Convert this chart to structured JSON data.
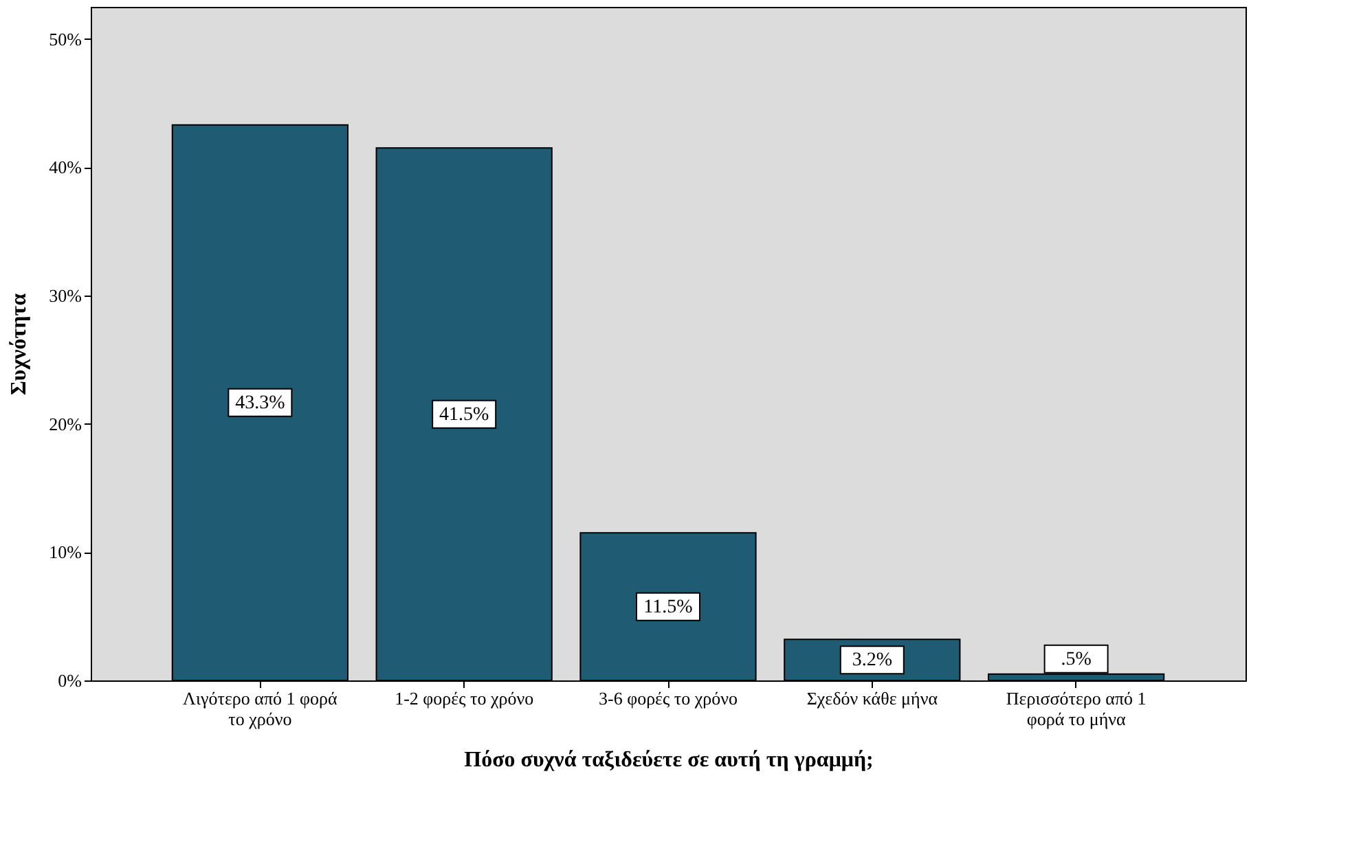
{
  "chart_data": {
    "type": "bar",
    "xlabel": "Πόσο συχνά ταξιδεύετε σε αυτή τη γραμμή;",
    "ylabel": "Συχνότητα",
    "categories": [
      "Λιγότερο από 1 φορά το χρόνο",
      "1-2 φορές το χρόνο",
      "3-6 φορές το χρόνο",
      "Σχεδόν κάθε μήνα",
      "Περισσότερο από 1 φορά το μήνα"
    ],
    "values": [
      43.3,
      41.5,
      11.5,
      3.2,
      0.5
    ],
    "value_labels": [
      "43.3%",
      "41.5%",
      "11.5%",
      "3.2%",
      ".5%"
    ],
    "color": "#1f5b73",
    "ylim": [
      0,
      52.5
    ],
    "yticks": [
      {
        "value": 0,
        "label": "0%"
      },
      {
        "value": 10,
        "label": "10%"
      },
      {
        "value": 20,
        "label": "20%"
      },
      {
        "value": 30,
        "label": "30%"
      },
      {
        "value": 40,
        "label": "40%"
      },
      {
        "value": 50,
        "label": "50%"
      }
    ],
    "grid": false
  }
}
